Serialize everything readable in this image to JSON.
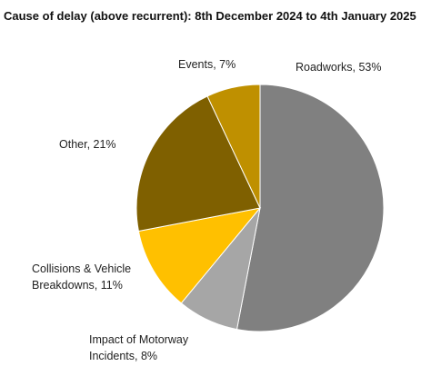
{
  "chart_data": {
    "type": "pie",
    "title": "Cause of delay (above recurrent): 8th December 2024 to 4th January 2025",
    "values": [
      53,
      8,
      11,
      21,
      7
    ],
    "value_labels": [
      [
        "Roadworks, 53%"
      ],
      [
        "Impact of Motorway",
        "Incidents, 8%"
      ],
      [
        "Collisions & Vehicle",
        "Breakdowns, 11%"
      ],
      [
        "Other, 21%"
      ],
      [
        "Events, 7%"
      ]
    ],
    "colors": [
      "#808080",
      "#a6a6a6",
      "#ffc000",
      "#7f6000",
      "#bf9000"
    ]
  }
}
